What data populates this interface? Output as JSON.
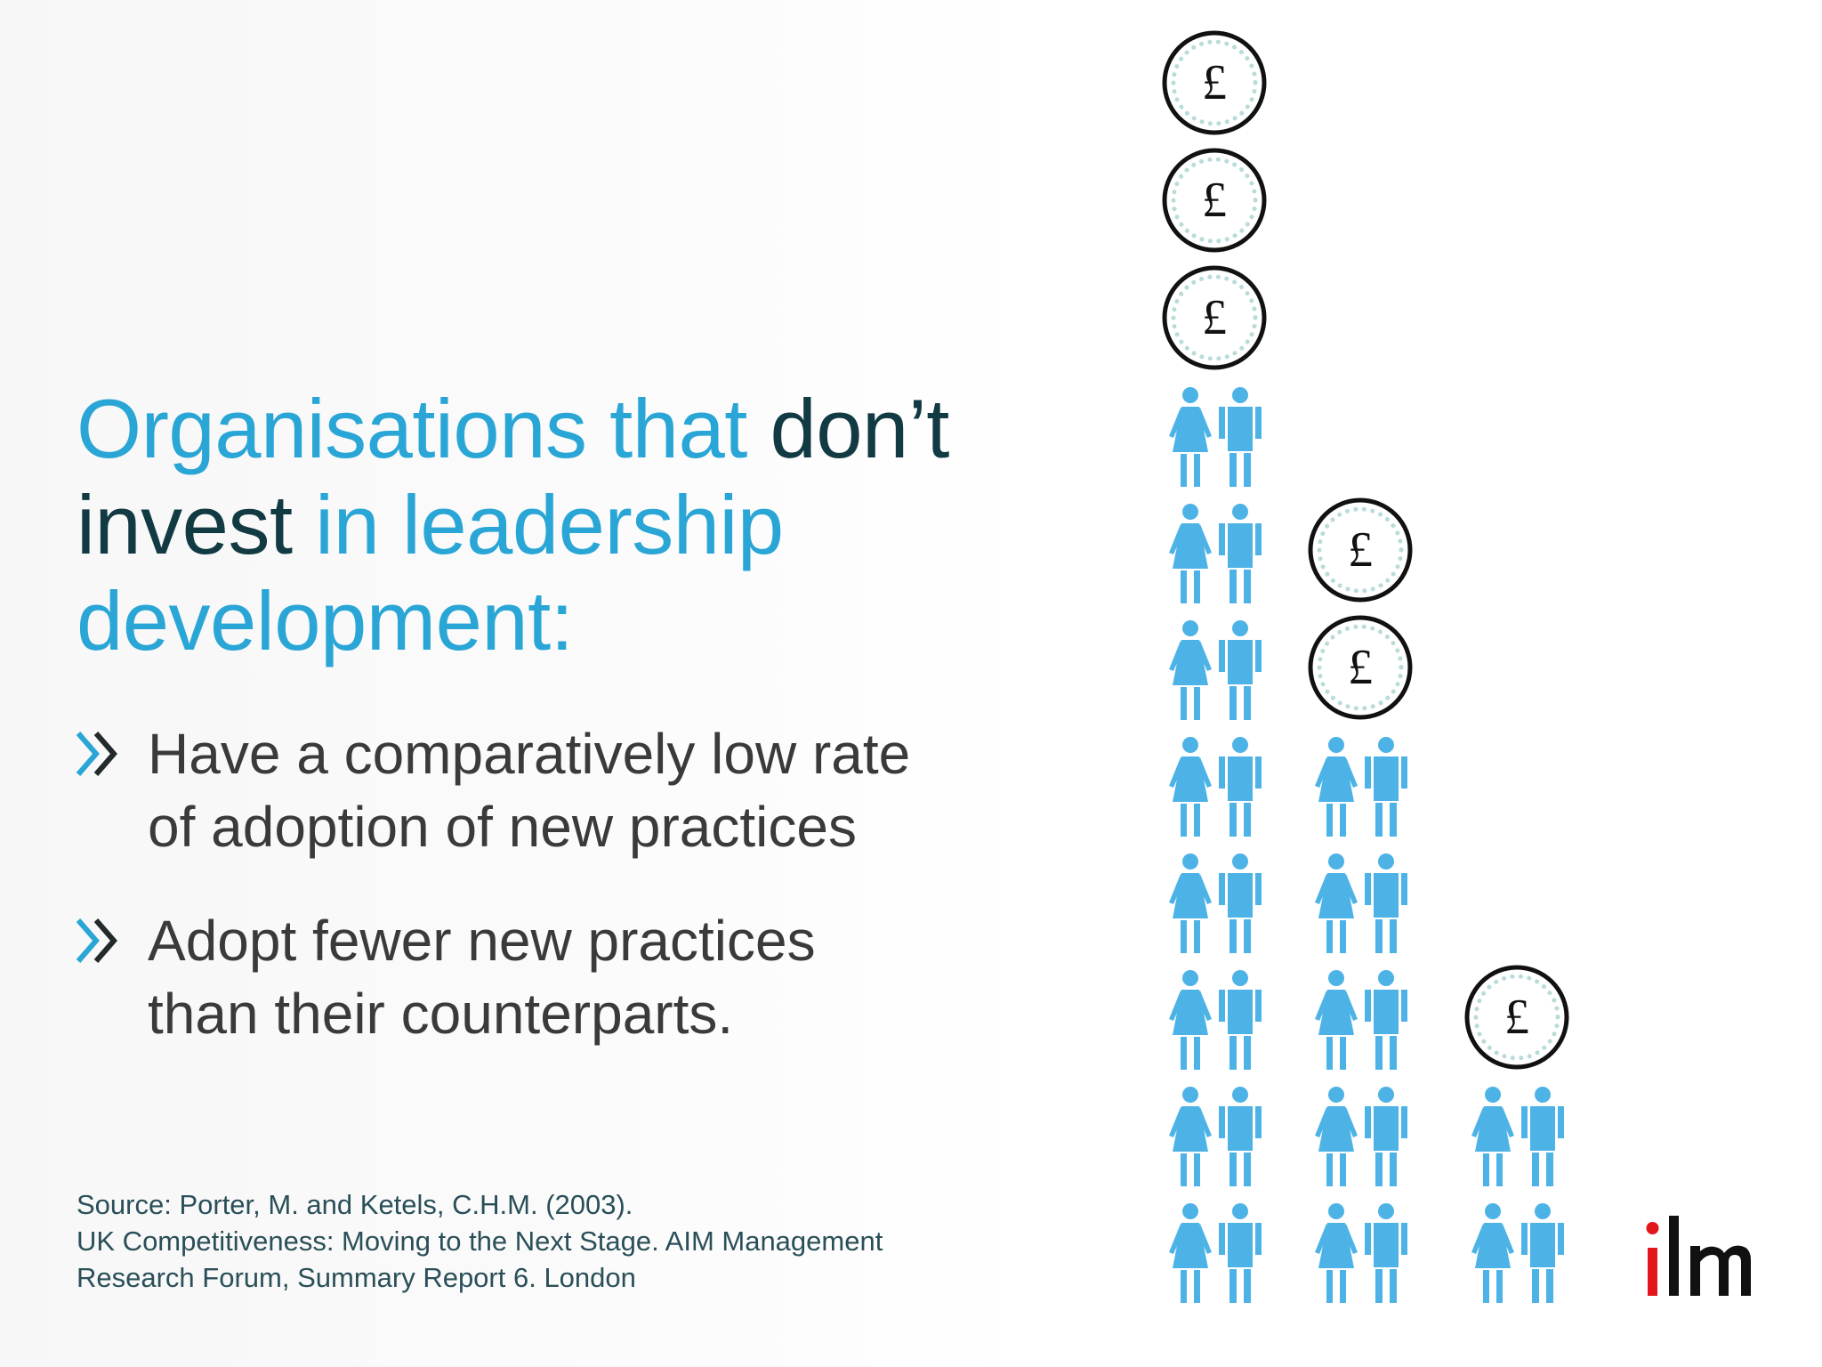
{
  "headline": {
    "part1": "Organisations that ",
    "part2": "don’t",
    "part3": "invest",
    "part4": " in leadership",
    "part5": "development:"
  },
  "bullets": [
    {
      "line1": "Have a comparatively low rate",
      "line2": "of adoption of new practices"
    },
    {
      "line1": "Adopt fewer new practices",
      "line2": "than their counterparts."
    }
  ],
  "source": {
    "line1": "Source: Porter, M. and Ketels, C.H.M. (2003).",
    "line2": "UK Competitiveness: Moving to the Next Stage. AIM Management",
    "line3": "Research Forum, Summary Report 6. London"
  },
  "figure": {
    "currency_symbol": "£",
    "columns": [
      {
        "coins": 3,
        "people_rows": 8
      },
      {
        "coins": 2,
        "people_rows": 5
      },
      {
        "coins": 1,
        "people_rows": 2
      }
    ]
  },
  "logo": {
    "text": "ilm"
  },
  "colors": {
    "accent_blue": "#2aa6d6",
    "dark_teal": "#123a43",
    "person_blue": "#4db3e6",
    "coin_dots": "#b9dcdb",
    "logo_red": "#e3161b"
  },
  "icons": [
    "chevron-double-right-icon",
    "pound-coin-icon",
    "female-person-icon",
    "male-person-icon"
  ]
}
